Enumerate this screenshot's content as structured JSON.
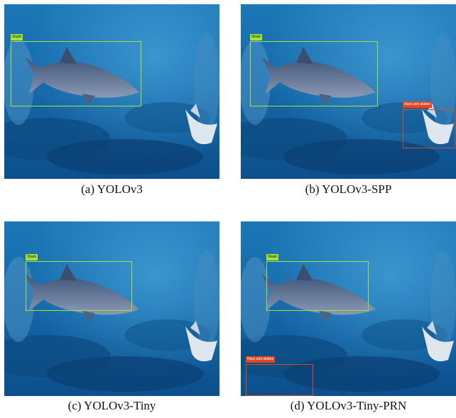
{
  "panels": [
    {
      "caption": "(a) YOLOv3",
      "detections": [
        {
          "label": "Shark"
        }
      ]
    },
    {
      "caption": "(b) YOLOv3-SPP",
      "detections": [
        {
          "label": "Shark"
        },
        {
          "label": "Rays and skates"
        }
      ]
    },
    {
      "caption": "(c) YOLOv3-Tiny",
      "detections": [
        {
          "label": "Shark"
        }
      ]
    },
    {
      "caption": "(d) YOLOv3-Tiny-PRN",
      "detections": [
        {
          "label": "Shark"
        },
        {
          "label": "Rays and skates"
        }
      ]
    }
  ]
}
